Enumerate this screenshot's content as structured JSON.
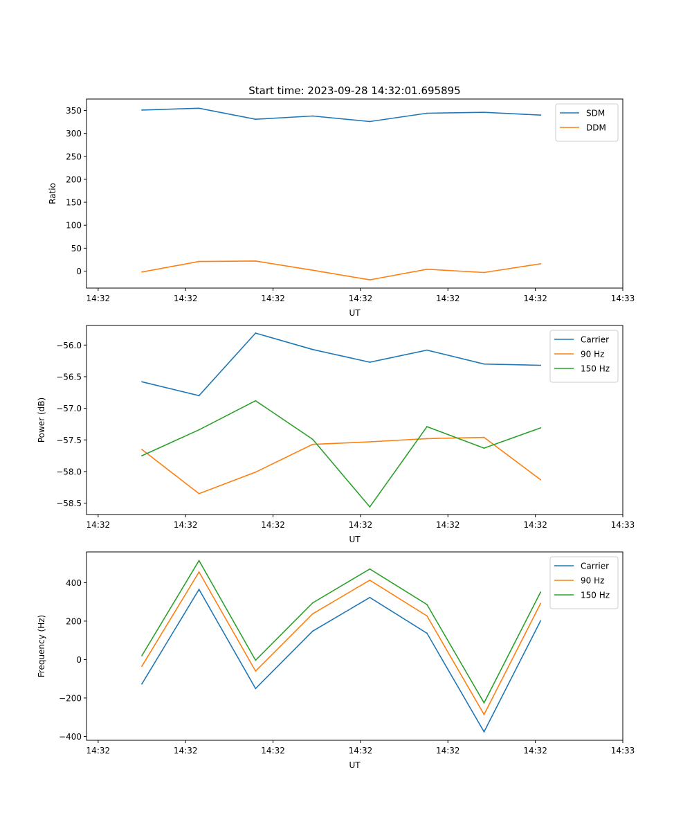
{
  "figure_title": "Start time: 2023-09-28 14:32:01.695895",
  "chart_data": [
    {
      "type": "line",
      "ylabel": "Ratio",
      "xlabel": "UT",
      "xlim": [
        -0.2,
        9.0
      ],
      "ylim": [
        -37,
        375
      ],
      "x_ticks": [
        0,
        1.5,
        3,
        4.5,
        6,
        7.5,
        9
      ],
      "x_tick_labels": [
        "14:32",
        "14:32",
        "14:32",
        "14:32",
        "14:32",
        "14:32",
        "14:33"
      ],
      "y_ticks": [
        0,
        50,
        100,
        150,
        200,
        250,
        300,
        350
      ],
      "y_tick_labels": [
        "0",
        "50",
        "100",
        "150",
        "200",
        "250",
        "300",
        "350"
      ],
      "legend_position": "top-right",
      "x": [
        0.75,
        1.73,
        2.7,
        3.68,
        4.66,
        5.64,
        6.62,
        7.59
      ],
      "series": [
        {
          "name": "SDM",
          "color": "#1f77b4",
          "values": [
            351,
            355,
            331,
            338,
            326,
            344,
            346,
            340
          ]
        },
        {
          "name": "DDM",
          "color": "#ff7f0e",
          "values": [
            -2,
            21,
            22,
            2,
            -19,
            4,
            -3,
            16
          ]
        }
      ]
    },
    {
      "type": "line",
      "ylabel": "Power (dB)",
      "xlabel": "UT",
      "xlim": [
        -0.2,
        9.0
      ],
      "ylim": [
        -58.68,
        -55.69
      ],
      "x_ticks": [
        0,
        1.5,
        3,
        4.5,
        6,
        7.5,
        9
      ],
      "x_tick_labels": [
        "14:32",
        "14:32",
        "14:32",
        "14:32",
        "14:32",
        "14:32",
        "14:33"
      ],
      "y_ticks": [
        -58.5,
        -58.0,
        -57.5,
        -57.0,
        -56.5,
        -56.0
      ],
      "y_tick_labels": [
        "−58.5",
        "−58.0",
        "−57.5",
        "−57.0",
        "−56.5",
        "−56.0"
      ],
      "legend_position": "top-right",
      "x": [
        0.75,
        1.73,
        2.7,
        3.68,
        4.66,
        5.64,
        6.62,
        7.59
      ],
      "series": [
        {
          "name": "Carrier",
          "color": "#1f77b4",
          "values": [
            -56.58,
            -56.8,
            -55.81,
            -56.07,
            -56.27,
            -56.08,
            -56.3,
            -56.32
          ]
        },
        {
          "name": "90 Hz",
          "color": "#ff7f0e",
          "values": [
            -57.65,
            -58.35,
            -58.01,
            -57.57,
            -57.53,
            -57.48,
            -57.46,
            -58.13
          ]
        },
        {
          "name": "150 Hz",
          "color": "#2ca02c",
          "values": [
            -57.75,
            -57.34,
            -56.88,
            -57.49,
            -58.56,
            -57.29,
            -57.63,
            -57.31
          ]
        }
      ]
    },
    {
      "type": "line",
      "ylabel": "Frequency (Hz)",
      "xlabel": "UT",
      "xlim": [
        -0.2,
        9.0
      ],
      "ylim": [
        -420,
        560
      ],
      "x_ticks": [
        0,
        1.5,
        3,
        4.5,
        6,
        7.5,
        9
      ],
      "x_tick_labels": [
        "14:32",
        "14:32",
        "14:32",
        "14:32",
        "14:32",
        "14:32",
        "14:33"
      ],
      "y_ticks": [
        -400,
        -200,
        0,
        200,
        400
      ],
      "y_tick_labels": [
        "−400",
        "−200",
        "0",
        "200",
        "400"
      ],
      "legend_position": "top-right",
      "x": [
        0.75,
        1.73,
        2.7,
        3.68,
        4.66,
        5.64,
        6.62,
        7.59
      ],
      "series": [
        {
          "name": "Carrier",
          "color": "#1f77b4",
          "values": [
            -127,
            365,
            -151,
            148,
            323,
            137,
            -376,
            202
          ]
        },
        {
          "name": "90 Hz",
          "color": "#ff7f0e",
          "values": [
            -35,
            456,
            -60,
            238,
            413,
            227,
            -286,
            292
          ]
        },
        {
          "name": "150 Hz",
          "color": "#2ca02c",
          "values": [
            20,
            515,
            -4,
            295,
            471,
            286,
            -225,
            351
          ]
        }
      ]
    }
  ]
}
